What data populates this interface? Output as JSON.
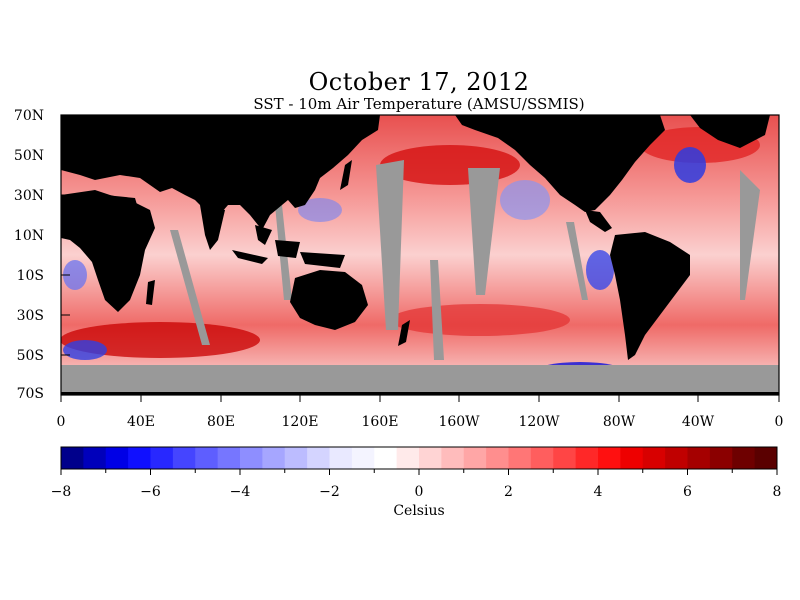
{
  "map": {
    "title": "October 17, 2012",
    "subtitle": "SST - 10m Air Temperature (AMSU/SSMIS)",
    "lat_labels": [
      "70N",
      "50N",
      "30N",
      "10N",
      "10S",
      "30S",
      "50S",
      "70S"
    ],
    "lon_labels": [
      "0",
      "40E",
      "80E",
      "120E",
      "160E",
      "160W",
      "120W",
      "80W",
      "40W",
      "0"
    ],
    "colors": {
      "land": "#000000",
      "no_data": "#999999",
      "ocean_warm": "#f07a7a",
      "ocean_hot": "#c40000",
      "ocean_cool": "#4a57e0",
      "neutral": "#ffffff"
    }
  },
  "colorbar": {
    "min": -8,
    "max": 8,
    "step": 0.5,
    "tick_labels": [
      "−8",
      "−6",
      "−4",
      "−2",
      "0",
      "2",
      "4",
      "6",
      "8"
    ],
    "unit_label": "Celsius",
    "colors": [
      "#00008b",
      "#0000bb",
      "#0000e6",
      "#1010ff",
      "#2828ff",
      "#4545ff",
      "#5e5eff",
      "#7676ff",
      "#8e8eff",
      "#a6a6ff",
      "#bcbcff",
      "#d4d4ff",
      "#e9e9ff",
      "#f4f4ff",
      "#ffffff",
      "#ffeaea",
      "#ffd4d4",
      "#ffbcbc",
      "#ffa6a6",
      "#ff8e8e",
      "#ff7676",
      "#ff5e5e",
      "#ff4545",
      "#ff2828",
      "#ff1010",
      "#ee0000",
      "#d80000",
      "#c00000",
      "#a50000",
      "#8b0000",
      "#6e0000",
      "#5a0000"
    ]
  }
}
